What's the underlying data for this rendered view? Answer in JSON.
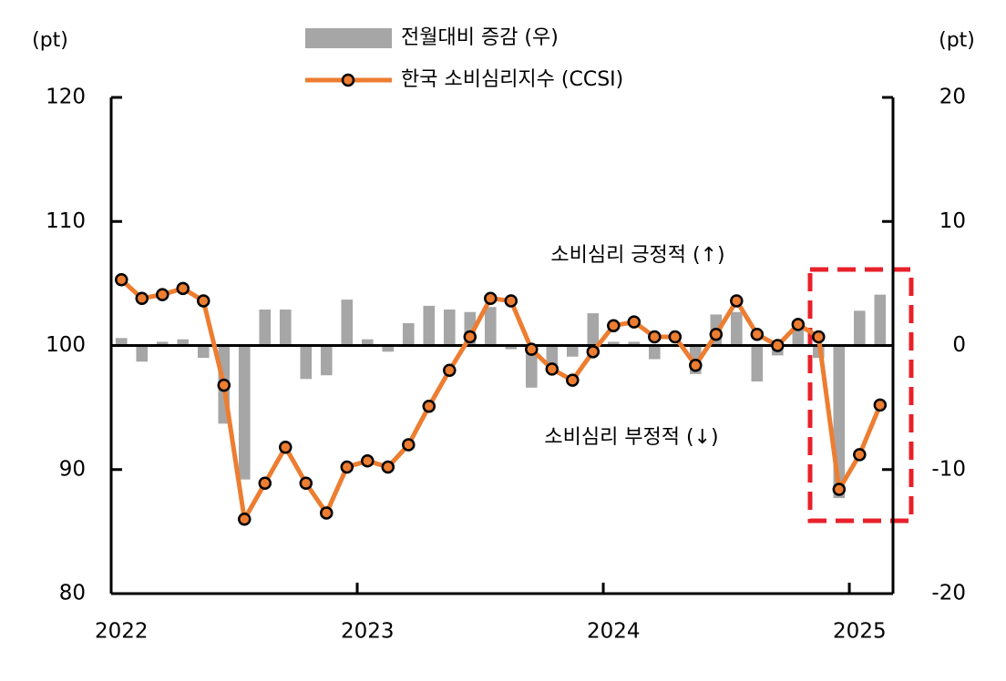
{
  "chart_data": {
    "type": "combo",
    "ylabel": "(pt)",
    "y2label": "(pt)",
    "categories": [
      "2022",
      null,
      null,
      null,
      null,
      null,
      null,
      null,
      null,
      null,
      null,
      null,
      "2023",
      null,
      null,
      null,
      null,
      null,
      null,
      null,
      null,
      null,
      null,
      null,
      "2024",
      null,
      null,
      null,
      null,
      null,
      null,
      null,
      null,
      null,
      null,
      null,
      "2025",
      null
    ],
    "ylim": [
      80,
      120
    ],
    "yticks": [
      80,
      90,
      100,
      110,
      120
    ],
    "y2lim": [
      -20,
      20
    ],
    "y2ticks": [
      -20,
      -10,
      0,
      10,
      20
    ],
    "series": [
      {
        "name": "전월대비 증감 (우)",
        "type": "bar",
        "axis": "y2",
        "color": "#a6a6a6",
        "values": [
          0.6,
          -1.3,
          0.3,
          0.5,
          -1.0,
          -6.3,
          -10.8,
          2.9,
          2.9,
          -2.7,
          -2.4,
          3.7,
          0.5,
          -0.5,
          1.8,
          3.2,
          2.9,
          2.7,
          3.1,
          -0.3,
          -3.4,
          -1.7,
          -0.9,
          2.6,
          0.3,
          0.3,
          -1.1,
          0.0,
          -2.3,
          2.5,
          2.7,
          -2.9,
          -0.8,
          1.7,
          -1.0,
          -12.3,
          2.8,
          4.1
        ]
      },
      {
        "name": "한국 소비심리지수 (CCSI)",
        "type": "line",
        "color": "#ed7d31",
        "values": [
          105.3,
          103.8,
          104.1,
          104.6,
          103.6,
          96.8,
          86.0,
          88.9,
          91.8,
          88.9,
          86.5,
          90.2,
          90.7,
          90.2,
          92.0,
          95.1,
          98.0,
          100.7,
          103.8,
          103.6,
          99.7,
          98.1,
          97.2,
          99.5,
          101.6,
          101.9,
          100.7,
          100.7,
          98.4,
          100.9,
          103.6,
          100.9,
          100.0,
          101.7,
          100.7,
          88.4,
          91.2,
          95.2
        ]
      }
    ],
    "annotations": [
      "소비심리 긍정적 (↑)",
      "소비심리 부정적 (↓)"
    ]
  }
}
